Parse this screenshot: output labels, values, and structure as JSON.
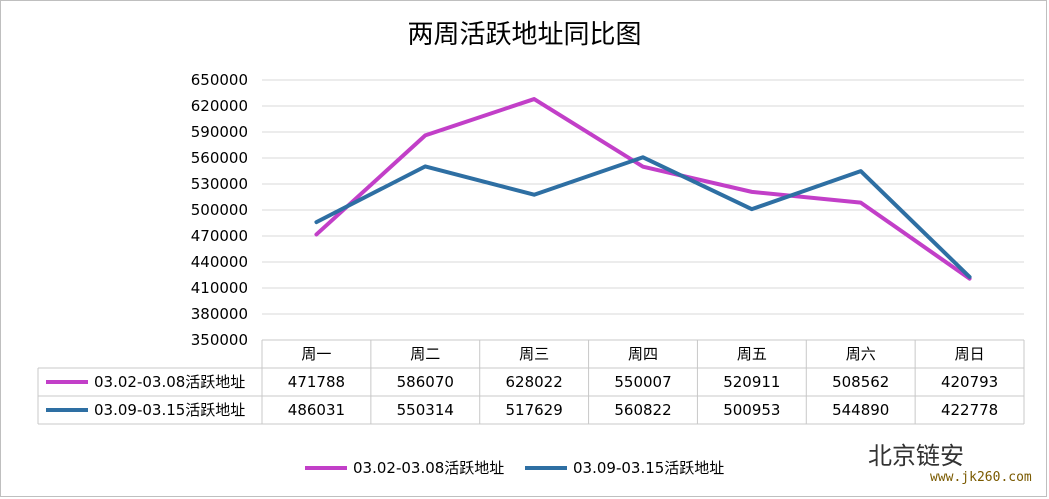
{
  "chart_data": {
    "type": "line",
    "title": "两周活跃地址同比图",
    "categories": [
      "周一",
      "周二",
      "周三",
      "周四",
      "周五",
      "周六",
      "周日"
    ],
    "series": [
      {
        "name": "03.02-03.08活跃地址",
        "color": "#c23fc8",
        "values": [
          471788,
          586070,
          628022,
          550007,
          520911,
          508562,
          420793
        ]
      },
      {
        "name": "03.09-03.15活跃地址",
        "color": "#2e6fa3",
        "values": [
          486031,
          550314,
          517629,
          560822,
          500953,
          544890,
          422778
        ]
      }
    ],
    "ylim": [
      350000,
      650000
    ],
    "yticks": [
      350000,
      380000,
      410000,
      440000,
      470000,
      500000,
      530000,
      560000,
      590000,
      620000,
      650000
    ],
    "grid": true,
    "data_table": true,
    "legend_position": "bottom"
  },
  "watermark": {
    "brand": "北京链安",
    "url": "www.jk260.com"
  }
}
